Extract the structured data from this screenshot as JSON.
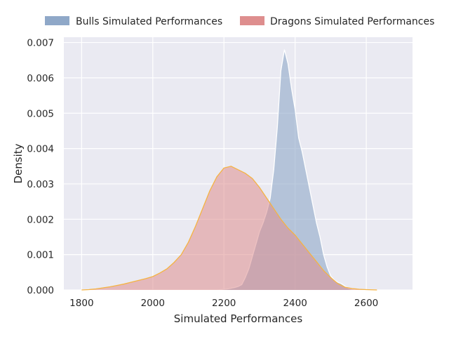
{
  "chart_data": {
    "type": "area",
    "xlabel": "Simulated Performances",
    "ylabel": "Density",
    "xlim": [
      1750,
      2730
    ],
    "ylim": [
      0,
      0.00715
    ],
    "x_ticks": [
      1800,
      2000,
      2200,
      2400,
      2600
    ],
    "y_ticks": [
      0.0,
      0.001,
      0.002,
      0.003,
      0.004,
      0.005,
      0.006,
      0.007
    ],
    "grid": true,
    "legend_position": "top",
    "series": [
      {
        "name": "Bulls Simulated Performances",
        "legend_color": "#8fa8c8",
        "fill_color": "#8fa8c8",
        "line_color": "#ffffff",
        "fill_opacity": 0.6,
        "points": [
          [
            2180,
            0.0
          ],
          [
            2190,
            1e-05
          ],
          [
            2200,
            2e-05
          ],
          [
            2210,
            3e-05
          ],
          [
            2220,
            5e-05
          ],
          [
            2230,
            7e-05
          ],
          [
            2240,
            0.0001
          ],
          [
            2250,
            0.00015
          ],
          [
            2260,
            0.00035
          ],
          [
            2270,
            0.0006
          ],
          [
            2280,
            0.00095
          ],
          [
            2290,
            0.0013
          ],
          [
            2300,
            0.00165
          ],
          [
            2310,
            0.0019
          ],
          [
            2320,
            0.0022
          ],
          [
            2330,
            0.0026
          ],
          [
            2340,
            0.0034
          ],
          [
            2350,
            0.0046
          ],
          [
            2360,
            0.0062
          ],
          [
            2370,
            0.0068
          ],
          [
            2380,
            0.0064
          ],
          [
            2390,
            0.0057
          ],
          [
            2400,
            0.0051
          ],
          [
            2410,
            0.0043
          ],
          [
            2420,
            0.0039
          ],
          [
            2430,
            0.0034
          ],
          [
            2440,
            0.0029
          ],
          [
            2450,
            0.0024
          ],
          [
            2460,
            0.0019
          ],
          [
            2470,
            0.0015
          ],
          [
            2480,
            0.001
          ],
          [
            2490,
            0.00065
          ],
          [
            2500,
            0.0004
          ],
          [
            2510,
            0.00028
          ],
          [
            2520,
            0.00022
          ],
          [
            2530,
            0.00018
          ],
          [
            2540,
            0.00011
          ],
          [
            2550,
            5e-05
          ],
          [
            2560,
            2e-05
          ],
          [
            2580,
            0.0
          ]
        ]
      },
      {
        "name": "Dragons Simulated Performances",
        "legend_color": "#de8e8e",
        "fill_color": "#de8e8e",
        "line_color": "#f5b342",
        "fill_opacity": 0.55,
        "points": [
          [
            1800,
            0.0
          ],
          [
            1820,
            1e-05
          ],
          [
            1840,
            3e-05
          ],
          [
            1860,
            6e-05
          ],
          [
            1880,
            9e-05
          ],
          [
            1900,
            0.00013
          ],
          [
            1920,
            0.00017
          ],
          [
            1940,
            0.00022
          ],
          [
            1960,
            0.00027
          ],
          [
            1980,
            0.00032
          ],
          [
            2000,
            0.00038
          ],
          [
            2020,
            0.00048
          ],
          [
            2040,
            0.0006
          ],
          [
            2060,
            0.00078
          ],
          [
            2080,
            0.001
          ],
          [
            2100,
            0.00135
          ],
          [
            2120,
            0.0018
          ],
          [
            2140,
            0.0023
          ],
          [
            2160,
            0.0028
          ],
          [
            2180,
            0.0032
          ],
          [
            2200,
            0.00345
          ],
          [
            2220,
            0.0035
          ],
          [
            2240,
            0.0034
          ],
          [
            2260,
            0.0033
          ],
          [
            2280,
            0.00315
          ],
          [
            2300,
            0.0029
          ],
          [
            2320,
            0.0026
          ],
          [
            2340,
            0.0023
          ],
          [
            2360,
            0.002
          ],
          [
            2380,
            0.00175
          ],
          [
            2400,
            0.00155
          ],
          [
            2420,
            0.0013
          ],
          [
            2440,
            0.00105
          ],
          [
            2460,
            0.0008
          ],
          [
            2480,
            0.00055
          ],
          [
            2500,
            0.00035
          ],
          [
            2520,
            0.00018
          ],
          [
            2540,
            8e-05
          ],
          [
            2560,
            4e-05
          ],
          [
            2580,
            2e-05
          ],
          [
            2600,
            1e-05
          ],
          [
            2630,
            0.0
          ]
        ]
      }
    ]
  }
}
